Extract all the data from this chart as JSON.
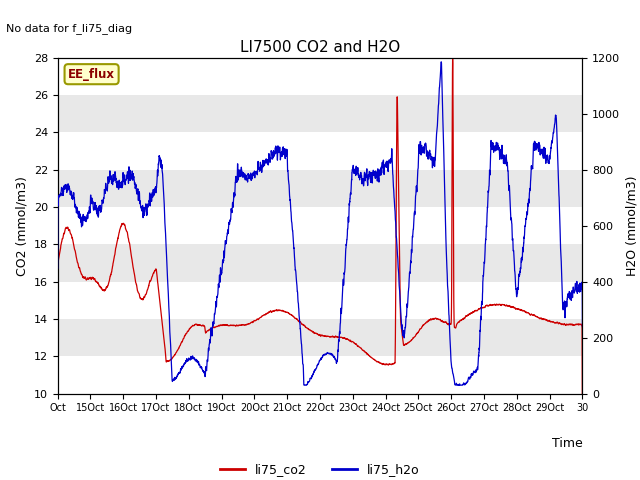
{
  "title": "LI7500 CO2 and H2O",
  "subtitle": "No data for f_li75_diag",
  "xlabel": "Time",
  "ylabel_left": "CO2 (mmol/m3)",
  "ylabel_right": "H2O (mmol/m3)",
  "ylim_left": [
    10,
    28
  ],
  "ylim_right": [
    0,
    1200
  ],
  "yticks_left": [
    10,
    12,
    14,
    16,
    18,
    20,
    22,
    24,
    26,
    28
  ],
  "yticks_right": [
    0,
    200,
    400,
    600,
    800,
    1000,
    1200
  ],
  "xtick_labels": [
    "Oct",
    "15Oct",
    "16Oct",
    "17Oct",
    "18Oct",
    "19Oct",
    "20Oct",
    "21Oct",
    "22Oct",
    "23Oct",
    "24Oct",
    "25Oct",
    "26Oct",
    "27Oct",
    "28Oct",
    "29Oct",
    "30"
  ],
  "legend_label_co2": "li75_co2",
  "legend_label_h2o": "li75_h2o",
  "ee_flux_label": "EE_flux",
  "color_co2": "#cc0000",
  "color_h2o": "#0000cc",
  "ee_flux_box_facecolor": "#ffffcc",
  "ee_flux_box_edgecolor": "#999900",
  "background_band_color": "#e8e8e8",
  "title_fontsize": 11,
  "axis_label_fontsize": 9,
  "tick_fontsize": 8
}
